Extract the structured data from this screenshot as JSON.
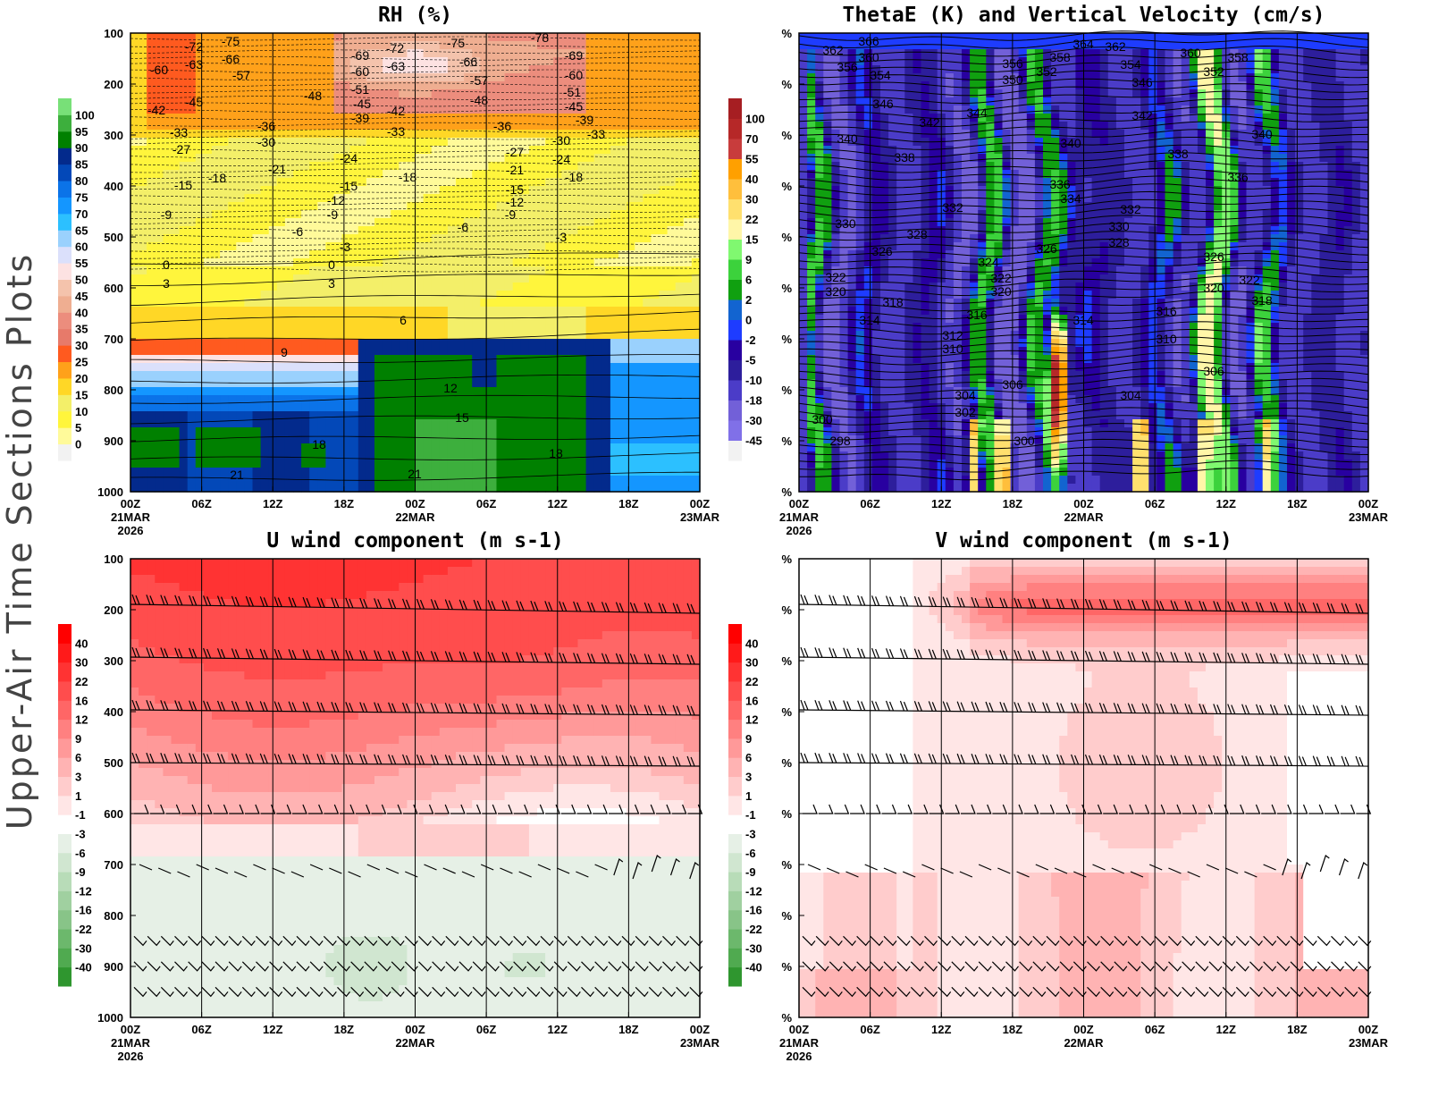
{
  "figure": {
    "side_title": "Upper-Air Time Sections Plots"
  },
  "axes": {
    "x_ticks": [
      "00Z",
      "06Z",
      "12Z",
      "18Z",
      "00Z",
      "06Z",
      "12Z",
      "18Z",
      "00Z"
    ],
    "x_dates": [
      "21MAR",
      "22MAR",
      "23MAR"
    ],
    "x_year": "2026",
    "y_ticks_pressure": [
      "100",
      "200",
      "300",
      "400",
      "500",
      "600",
      "700",
      "800",
      "900",
      "1000"
    ],
    "y_ticks_percent": [
      "%",
      "%",
      "%",
      "%",
      "%",
      "%",
      "%",
      "%",
      "%",
      "%"
    ]
  },
  "chart_data": [
    {
      "type": "heatmap",
      "title": "RH (%)",
      "ylim": [
        100,
        1000
      ],
      "y_reversed": true,
      "x_range": [
        "00Z 21MAR 2026",
        "00Z 23MAR 2026"
      ],
      "grid": true,
      "colorbar": {
        "levels": [
          "0",
          "5",
          "10",
          "15",
          "20",
          "25",
          "30",
          "35",
          "40",
          "45",
          "50",
          "55",
          "60",
          "65",
          "70",
          "75",
          "80",
          "85",
          "90",
          "95",
          "100"
        ],
        "colors": [
          "#f2f2f2",
          "#fffa9a",
          "#fff53c",
          "#f3ef69",
          "#ffd726",
          "#ffa11a",
          "#ff5a1f",
          "#e77a6a",
          "#ec8d7d",
          "#efae91",
          "#f4c3ac",
          "#fde2e2",
          "#dbe0fb",
          "#9ad1fd",
          "#2cc0ff",
          "#1496ff",
          "#0b73e8",
          "#0348b8",
          "#032a8c",
          "#008000",
          "#3daf3d",
          "#78e078"
        ]
      },
      "contour_labels": [
        "-72",
        "-75",
        "-60",
        "-63",
        "-66",
        "-57",
        "-42",
        "-45",
        "-48",
        "-69",
        "-72",
        "-75",
        "-78",
        "-69",
        "-60",
        "-63",
        "-66",
        "-57",
        "-60",
        "-51",
        "-45",
        "-39",
        "-42",
        "-48",
        "-51",
        "-45",
        "-39",
        "-33",
        "-36",
        "-30",
        "-33",
        "-27",
        "-36",
        "-30",
        "-21",
        "-33",
        "-24",
        "-27",
        "-21",
        "-24",
        "-18",
        "-15",
        "-15",
        "-12",
        "-9",
        "-18",
        "-18",
        "-15",
        "-12",
        "-9",
        "-9",
        "-6",
        "-3",
        "-6",
        "-3",
        "0",
        "0",
        "3",
        "3",
        "6",
        "9",
        "12",
        "15",
        "18",
        "18",
        "21",
        "21"
      ]
    },
    {
      "type": "heatmap",
      "title": "ThetaE (K) and Vertical Velocity (cm/s)",
      "x_range": [
        "00Z 21MAR 2026",
        "00Z 23MAR 2026"
      ],
      "grid": true,
      "colorbar": {
        "levels": [
          "-45",
          "-30",
          "-18",
          "-10",
          "-5",
          "-2",
          "0",
          "2",
          "6",
          "9",
          "15",
          "22",
          "30",
          "40",
          "55",
          "70",
          "100"
        ],
        "colors": [
          "#f2f2f2",
          "#8070e8",
          "#7260d8",
          "#4b3cc8",
          "#2d1e9c",
          "#2800a0",
          "#1e3cff",
          "#1264d0",
          "#10a010",
          "#3cd23c",
          "#80f870",
          "#fff6a8",
          "#ffe06e",
          "#ffbf3c",
          "#ffa000",
          "#c83c3c",
          "#b62828",
          "#a61e22"
        ]
      },
      "contour_labels": [
        "362",
        "366",
        "360",
        "356",
        "354",
        "364",
        "362",
        "358",
        "356",
        "352",
        "350",
        "354",
        "360",
        "358",
        "352",
        "346",
        "346",
        "342",
        "344",
        "342",
        "340",
        "338",
        "340",
        "340",
        "338",
        "336",
        "336",
        "334",
        "332",
        "332",
        "330",
        "328",
        "330",
        "328",
        "326",
        "326",
        "324",
        "322",
        "320",
        "326",
        "322",
        "320",
        "318",
        "322",
        "320",
        "318",
        "316",
        "314",
        "314",
        "316",
        "312",
        "310",
        "310",
        "306",
        "306",
        "304",
        "302",
        "304",
        "300",
        "298",
        "300"
      ]
    },
    {
      "type": "heatmap",
      "title": "U wind component (m s-1)",
      "ylim": [
        100,
        1000
      ],
      "y_reversed": true,
      "x_range": [
        "00Z 21MAR 2026",
        "00Z 23MAR 2026"
      ],
      "grid": true,
      "colorbar": {
        "levels": [
          "-40",
          "-30",
          "-22",
          "-16",
          "-12",
          "-9",
          "-6",
          "-3",
          "-1",
          "1",
          "3",
          "6",
          "9",
          "12",
          "16",
          "22",
          "30",
          "40"
        ],
        "colors": [
          "#2f962f",
          "#50aa50",
          "#6cb86c",
          "#88c488",
          "#a0d0a0",
          "#b8dcb8",
          "#d0e6d0",
          "#e6f0e6",
          "#ffffff",
          "#ffe6e6",
          "#ffcccc",
          "#ffb3b3",
          "#ff9999",
          "#ff8080",
          "#ff6666",
          "#ff4d4d",
          "#ff3333",
          "#ff1a1a",
          "#ff0000"
        ]
      }
    },
    {
      "type": "heatmap",
      "title": "V wind component (m s-1)",
      "x_range": [
        "00Z 21MAR 2026",
        "00Z 23MAR 2026"
      ],
      "grid": true,
      "colorbar": {
        "levels": [
          "-40",
          "-30",
          "-22",
          "-16",
          "-12",
          "-9",
          "-6",
          "-3",
          "-1",
          "1",
          "3",
          "6",
          "9",
          "12",
          "16",
          "22",
          "30",
          "40"
        ],
        "colors": [
          "#2f962f",
          "#50aa50",
          "#6cb86c",
          "#88c488",
          "#a0d0a0",
          "#b8dcb8",
          "#d0e6d0",
          "#e6f0e6",
          "#ffffff",
          "#ffe6e6",
          "#ffcccc",
          "#ffb3b3",
          "#ff9999",
          "#ff8080",
          "#ff6666",
          "#ff4d4d",
          "#ff3333",
          "#ff1a1a",
          "#ff0000"
        ]
      }
    }
  ]
}
